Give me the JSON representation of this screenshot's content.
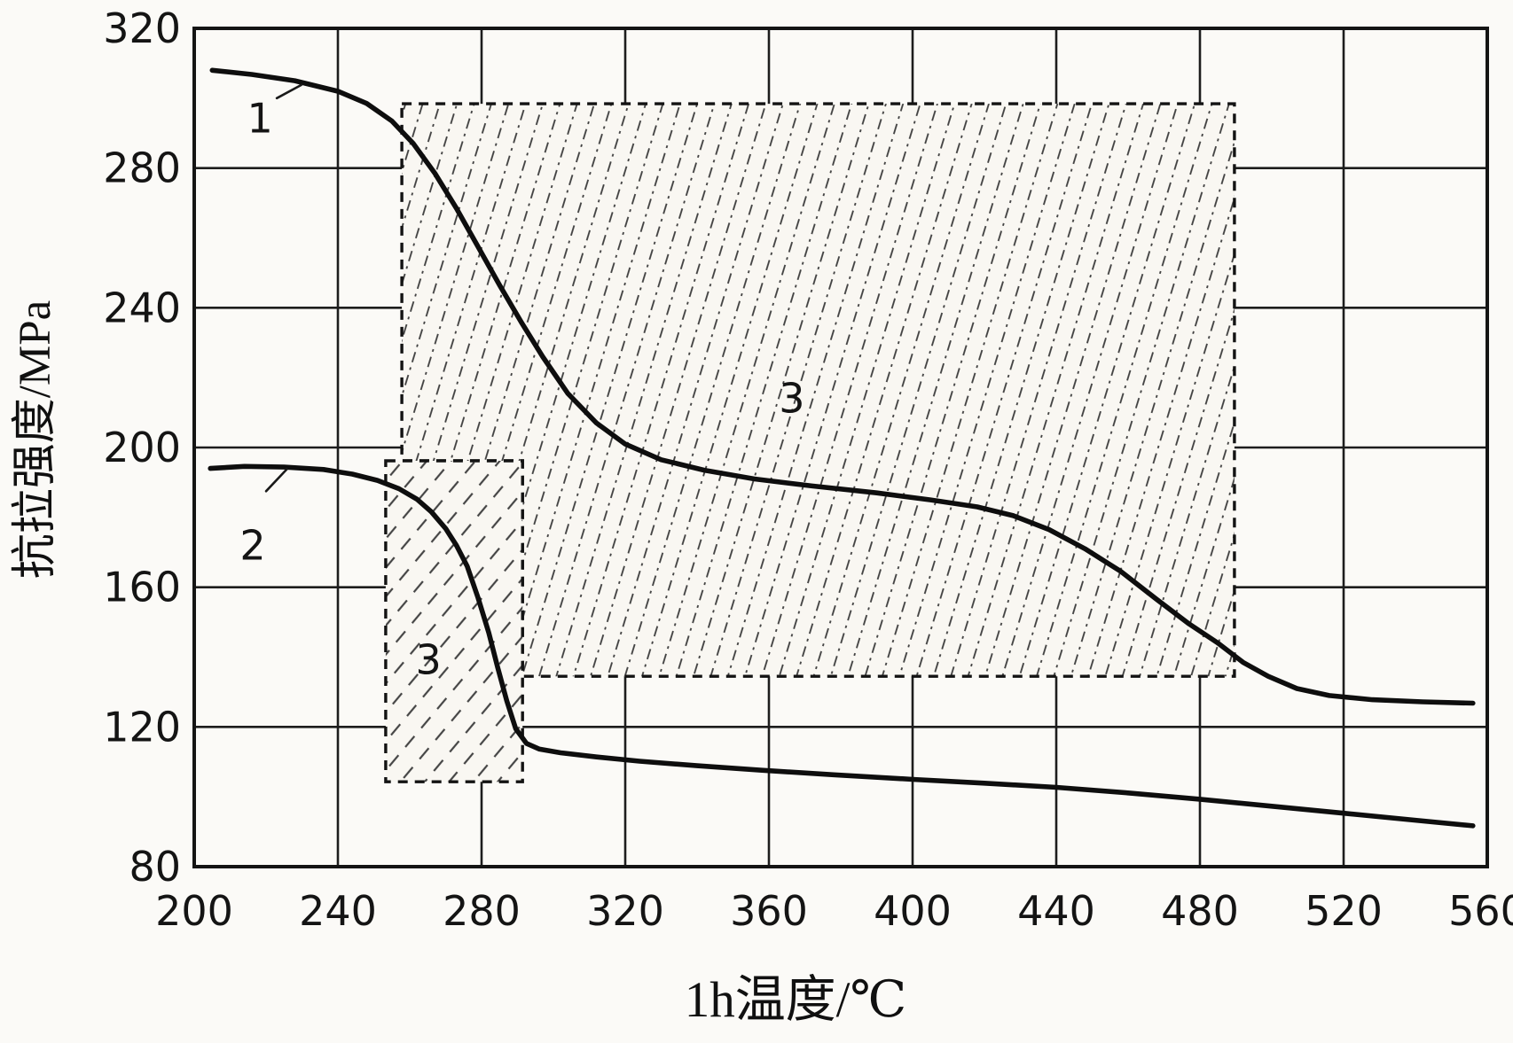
{
  "figure": {
    "kind": "scanned line chart",
    "paper_color": "#fbfaf7",
    "ink_color": "#141414",
    "hatch_color": "#3d3d3d"
  },
  "chart_data": {
    "type": "line",
    "title": "",
    "xlabel": "1h温度/℃",
    "ylabel": "抗拉强度/MPa",
    "xlim": [
      200,
      560
    ],
    "ylim": [
      80,
      320
    ],
    "x_ticks": [
      200,
      240,
      280,
      320,
      360,
      400,
      440,
      480,
      520,
      560
    ],
    "y_ticks": [
      80,
      120,
      160,
      200,
      240,
      280,
      320
    ],
    "grid": true,
    "legend": "none",
    "series": [
      {
        "name": "1",
        "points": [
          [
            205,
            308
          ],
          [
            216,
            306.8
          ],
          [
            228,
            305
          ],
          [
            240,
            302
          ],
          [
            248,
            298.5
          ],
          [
            255,
            293.5
          ],
          [
            261,
            287
          ],
          [
            267,
            278.5
          ],
          [
            273,
            268.5
          ],
          [
            279,
            257.5
          ],
          [
            285,
            246.5
          ],
          [
            291,
            236
          ],
          [
            297,
            226
          ],
          [
            304,
            215.5
          ],
          [
            312,
            207
          ],
          [
            320,
            201
          ],
          [
            330,
            196.5
          ],
          [
            342,
            193.5
          ],
          [
            356,
            191
          ],
          [
            372,
            189
          ],
          [
            390,
            187
          ],
          [
            405,
            185
          ],
          [
            418,
            183
          ],
          [
            428,
            180.5
          ],
          [
            438,
            176.5
          ],
          [
            448,
            171
          ],
          [
            458,
            164.5
          ],
          [
            468,
            156.5
          ],
          [
            477,
            149.5
          ],
          [
            485,
            144
          ],
          [
            492,
            138.5
          ],
          [
            499,
            134.5
          ],
          [
            507,
            131
          ],
          [
            516,
            129
          ],
          [
            528,
            127.8
          ],
          [
            542,
            127.2
          ],
          [
            556,
            126.8
          ]
        ]
      },
      {
        "name": "2",
        "points": [
          [
            204.5,
            194
          ],
          [
            214,
            194.6
          ],
          [
            225,
            194.4
          ],
          [
            236,
            193.7
          ],
          [
            244,
            192.4
          ],
          [
            251,
            190.6
          ],
          [
            257,
            188.2
          ],
          [
            262,
            185.2
          ],
          [
            266,
            181.6
          ],
          [
            270,
            176.8
          ],
          [
            273,
            172
          ],
          [
            276,
            166
          ],
          [
            279,
            157
          ],
          [
            282,
            147
          ],
          [
            284.5,
            137
          ],
          [
            287,
            127.5
          ],
          [
            289.5,
            119.5
          ],
          [
            292.5,
            115.3
          ],
          [
            296,
            113.7
          ],
          [
            302,
            112.6
          ],
          [
            312,
            111.4
          ],
          [
            324,
            110.2
          ],
          [
            340,
            108.9
          ],
          [
            358,
            107.6
          ],
          [
            378,
            106.3
          ],
          [
            400,
            105
          ],
          [
            420,
            103.9
          ],
          [
            440,
            102.7
          ],
          [
            460,
            101.1
          ],
          [
            480,
            99.3
          ],
          [
            500,
            97.3
          ],
          [
            520,
            95.3
          ],
          [
            540,
            93.3
          ],
          [
            556,
            91.7
          ]
        ]
      }
    ],
    "regions": [
      {
        "label": "3",
        "hatch": "steep-dash-dot",
        "polygon": [
          [
            257.8,
            298.4
          ],
          [
            489.6,
            298.4
          ],
          [
            489.6,
            134.5
          ],
          [
            291.4,
            134.5
          ],
          [
            291.4,
            196.2
          ],
          [
            257.8,
            196.2
          ]
        ],
        "label_pos": [
          366.4,
          214.1
        ]
      },
      {
        "label": "3",
        "hatch": "shallow-dash",
        "polygon": [
          [
            253.3,
            196.2
          ],
          [
            291.4,
            196.2
          ],
          [
            291.4,
            104.3
          ],
          [
            253.3,
            104.3
          ]
        ],
        "label_pos": [
          265.2,
          139.2
        ]
      }
    ],
    "annotations": [
      {
        "text": "1",
        "pos": [
          218.3,
          294.3
        ],
        "leader": [
          [
            223.0,
            300.0
          ],
          [
            229.8,
            303.8
          ]
        ]
      },
      {
        "text": "2",
        "pos": [
          216.3,
          172.0
        ],
        "leader": [
          [
            220.0,
            187.5
          ],
          [
            225.8,
            193.8
          ]
        ]
      }
    ]
  }
}
